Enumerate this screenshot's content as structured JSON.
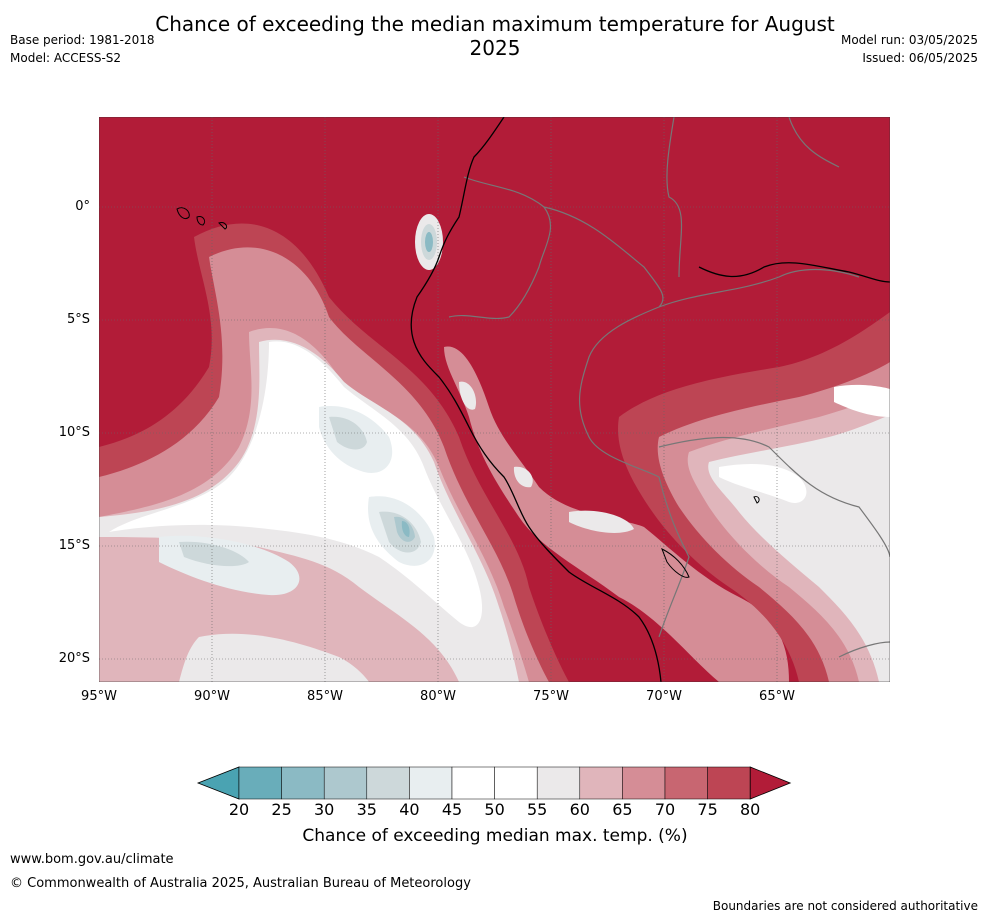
{
  "header": {
    "title": "Chance of exceeding the median maximum temperature for August 2025",
    "base_period": "Base period: 1981-2018",
    "model": "Model: ACCESS-S2",
    "model_run": "Model run: 03/05/2025",
    "issued": "Issued: 06/05/2025"
  },
  "map": {
    "lat_labels": [
      "0°",
      "5°S",
      "10°S",
      "15°S",
      "20°S"
    ],
    "lon_labels": [
      "95°W",
      "90°W",
      "85°W",
      "80°W",
      "75°W",
      "70°W",
      "65°W"
    ],
    "extent": {
      "lon": [
        -95,
        -60
      ],
      "lat": [
        -21,
        4
      ]
    }
  },
  "colorbar": {
    "ticks": [
      "20",
      "25",
      "30",
      "35",
      "40",
      "45",
      "50",
      "55",
      "60",
      "65",
      "70",
      "75",
      "80"
    ],
    "colors": [
      "#4aa3b2",
      "#69adba",
      "#8bbac4",
      "#adc8ce",
      "#cdd8da",
      "#e8eef0",
      "#ffffff",
      "#ffffff",
      "#ebe9ea",
      "#e0b5bb",
      "#d58d96",
      "#c86671",
      "#bd4554",
      "#b21c38"
    ],
    "title": "Chance of exceeding median max. temp. (%)"
  },
  "footer": {
    "site": "www.bom.gov.au/climate",
    "copyright": "© Commonwealth of Australia 2025, Australian Bureau of Meteorology",
    "boundary_note": "Boundaries are not considered authoritative"
  }
}
